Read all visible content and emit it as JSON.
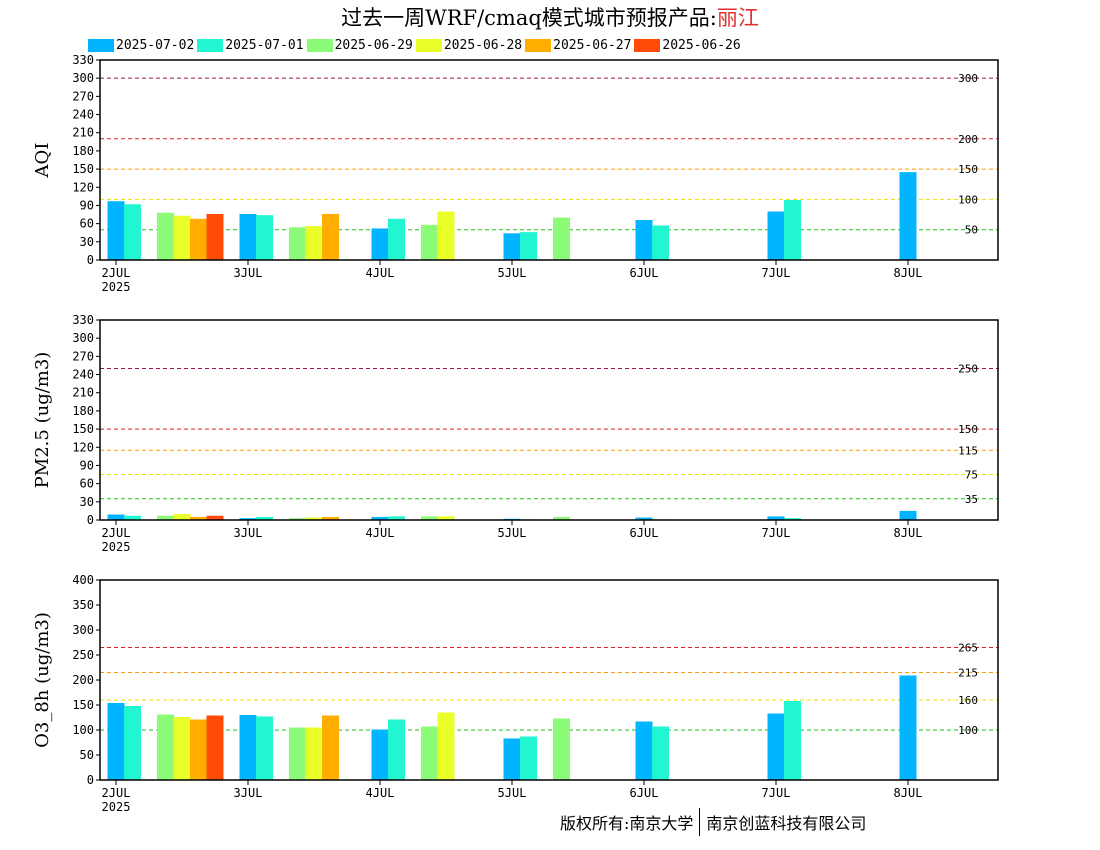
{
  "title": {
    "prefix": "过去一周WRF/cmaq模式城市预报产品:",
    "city": "丽江"
  },
  "legend": [
    {
      "label": "2025-07-02",
      "color": "#00b4ff"
    },
    {
      "label": "2025-07-01",
      "color": "#22f5d2"
    },
    {
      "label": "2025-06-29",
      "color": "#8cfb78"
    },
    {
      "label": "2025-06-28",
      "color": "#eaff2a"
    },
    {
      "label": "2025-06-27",
      "color": "#ffad00"
    },
    {
      "label": "2025-06-26",
      "color": "#ff4a08"
    }
  ],
  "footer": {
    "left": "版权所有:南京大学",
    "right": "南京创蓝科技有限公司"
  },
  "chart_data": [
    {
      "type": "bar",
      "ylabel": "AQI",
      "ylim": [
        0,
        330
      ],
      "yticks": [
        0,
        30,
        60,
        90,
        120,
        150,
        180,
        210,
        240,
        270,
        300,
        330
      ],
      "xticks": [
        {
          "label": "2JUL",
          "sub": "2025",
          "pos": 0
        },
        {
          "label": "3JUL",
          "sub": "",
          "pos": 1
        },
        {
          "label": "4JUL",
          "sub": "",
          "pos": 2
        },
        {
          "label": "5JUL",
          "sub": "",
          "pos": 3
        },
        {
          "label": "6JUL",
          "sub": "",
          "pos": 4
        },
        {
          "label": "7JUL",
          "sub": "",
          "pos": 5
        },
        {
          "label": "8JUL",
          "sub": "",
          "pos": 6
        }
      ],
      "thresholds": [
        {
          "value": 50,
          "label": "50",
          "color": "#1fbf1f"
        },
        {
          "value": 100,
          "label": "100",
          "color": "#e8e400"
        },
        {
          "value": 150,
          "label": "150",
          "color": "#ff9a00"
        },
        {
          "value": 200,
          "label": "200",
          "color": "#e02020"
        },
        {
          "value": 300,
          "label": "300",
          "color": "#a0105a"
        }
      ],
      "bars": [
        {
          "series": "2025-07-02",
          "x": 0.0,
          "value": 97
        },
        {
          "series": "2025-07-01",
          "x": 0.125,
          "value": 92
        },
        {
          "series": "2025-06-29",
          "x": 0.375,
          "value": 78
        },
        {
          "series": "2025-06-28",
          "x": 0.5,
          "value": 73
        },
        {
          "series": "2025-06-27",
          "x": 0.625,
          "value": 68
        },
        {
          "series": "2025-06-26",
          "x": 0.75,
          "value": 76
        },
        {
          "series": "2025-07-02",
          "x": 1.0,
          "value": 76
        },
        {
          "series": "2025-07-01",
          "x": 1.125,
          "value": 74
        },
        {
          "series": "2025-06-29",
          "x": 1.375,
          "value": 54
        },
        {
          "series": "2025-06-28",
          "x": 1.5,
          "value": 56
        },
        {
          "series": "2025-06-27",
          "x": 1.625,
          "value": 76
        },
        {
          "series": "2025-07-02",
          "x": 2.0,
          "value": 52
        },
        {
          "series": "2025-07-01",
          "x": 2.125,
          "value": 68
        },
        {
          "series": "2025-06-29",
          "x": 2.375,
          "value": 58
        },
        {
          "series": "2025-06-28",
          "x": 2.5,
          "value": 80
        },
        {
          "series": "2025-07-02",
          "x": 3.0,
          "value": 44
        },
        {
          "series": "2025-07-01",
          "x": 3.125,
          "value": 46
        },
        {
          "series": "2025-06-29",
          "x": 3.375,
          "value": 70
        },
        {
          "series": "2025-07-02",
          "x": 4.0,
          "value": 66
        },
        {
          "series": "2025-07-01",
          "x": 4.125,
          "value": 57
        },
        {
          "series": "2025-07-02",
          "x": 5.0,
          "value": 80
        },
        {
          "series": "2025-07-01",
          "x": 5.125,
          "value": 99
        },
        {
          "series": "2025-07-02",
          "x": 6.0,
          "value": 145
        }
      ]
    },
    {
      "type": "bar",
      "ylabel": "PM2.5 (ug/m3)",
      "ylim": [
        0,
        330
      ],
      "yticks": [
        0,
        30,
        60,
        90,
        120,
        150,
        180,
        210,
        240,
        270,
        300,
        330
      ],
      "xticks": [
        {
          "label": "2JUL",
          "sub": "2025",
          "pos": 0
        },
        {
          "label": "3JUL",
          "sub": "",
          "pos": 1
        },
        {
          "label": "4JUL",
          "sub": "",
          "pos": 2
        },
        {
          "label": "5JUL",
          "sub": "",
          "pos": 3
        },
        {
          "label": "6JUL",
          "sub": "",
          "pos": 4
        },
        {
          "label": "7JUL",
          "sub": "",
          "pos": 5
        },
        {
          "label": "8JUL",
          "sub": "",
          "pos": 6
        }
      ],
      "thresholds": [
        {
          "value": 35,
          "label": "35",
          "color": "#1fbf1f"
        },
        {
          "value": 75,
          "label": "75",
          "color": "#e8e400"
        },
        {
          "value": 115,
          "label": "115",
          "color": "#ff9a00"
        },
        {
          "value": 150,
          "label": "150",
          "color": "#e02020"
        },
        {
          "value": 250,
          "label": "250",
          "color": "#a0105a"
        }
      ],
      "bars": [
        {
          "series": "2025-07-02",
          "x": 0.0,
          "value": 9
        },
        {
          "series": "2025-07-01",
          "x": 0.125,
          "value": 7
        },
        {
          "series": "2025-06-29",
          "x": 0.375,
          "value": 7
        },
        {
          "series": "2025-06-28",
          "x": 0.5,
          "value": 10
        },
        {
          "series": "2025-06-27",
          "x": 0.625,
          "value": 5
        },
        {
          "series": "2025-06-26",
          "x": 0.75,
          "value": 7
        },
        {
          "series": "2025-07-02",
          "x": 1.0,
          "value": 3
        },
        {
          "series": "2025-07-01",
          "x": 1.125,
          "value": 5
        },
        {
          "series": "2025-06-29",
          "x": 1.375,
          "value": 3
        },
        {
          "series": "2025-06-28",
          "x": 1.5,
          "value": 4
        },
        {
          "series": "2025-06-27",
          "x": 1.625,
          "value": 5
        },
        {
          "series": "2025-07-02",
          "x": 2.0,
          "value": 5
        },
        {
          "series": "2025-07-01",
          "x": 2.125,
          "value": 6
        },
        {
          "series": "2025-06-29",
          "x": 2.375,
          "value": 6
        },
        {
          "series": "2025-06-28",
          "x": 2.5,
          "value": 6
        },
        {
          "series": "2025-07-02",
          "x": 3.0,
          "value": 2
        },
        {
          "series": "2025-07-01",
          "x": 3.125,
          "value": 1
        },
        {
          "series": "2025-06-29",
          "x": 3.375,
          "value": 5
        },
        {
          "series": "2025-07-02",
          "x": 4.0,
          "value": 4
        },
        {
          "series": "2025-07-01",
          "x": 4.125,
          "value": 1
        },
        {
          "series": "2025-07-02",
          "x": 5.0,
          "value": 6
        },
        {
          "series": "2025-07-01",
          "x": 5.125,
          "value": 3
        },
        {
          "series": "2025-07-02",
          "x": 6.0,
          "value": 15
        }
      ]
    },
    {
      "type": "bar",
      "ylabel": "O3_8h (ug/m3)",
      "ylim": [
        0,
        400
      ],
      "yticks": [
        0,
        50,
        100,
        150,
        200,
        250,
        300,
        350,
        400
      ],
      "xticks": [
        {
          "label": "2JUL",
          "sub": "2025",
          "pos": 0
        },
        {
          "label": "3JUL",
          "sub": "",
          "pos": 1
        },
        {
          "label": "4JUL",
          "sub": "",
          "pos": 2
        },
        {
          "label": "5JUL",
          "sub": "",
          "pos": 3
        },
        {
          "label": "6JUL",
          "sub": "",
          "pos": 4
        },
        {
          "label": "7JUL",
          "sub": "",
          "pos": 5
        },
        {
          "label": "8JUL",
          "sub": "",
          "pos": 6
        }
      ],
      "thresholds": [
        {
          "value": 100,
          "label": "100",
          "color": "#1fbf1f"
        },
        {
          "value": 160,
          "label": "160",
          "color": "#e8e400"
        },
        {
          "value": 215,
          "label": "215",
          "color": "#ff9a00"
        },
        {
          "value": 265,
          "label": "265",
          "color": "#e02020"
        }
      ],
      "bars": [
        {
          "series": "2025-07-02",
          "x": 0.0,
          "value": 154
        },
        {
          "series": "2025-07-01",
          "x": 0.125,
          "value": 148
        },
        {
          "series": "2025-06-29",
          "x": 0.375,
          "value": 131
        },
        {
          "series": "2025-06-28",
          "x": 0.5,
          "value": 126
        },
        {
          "series": "2025-06-27",
          "x": 0.625,
          "value": 121
        },
        {
          "series": "2025-06-26",
          "x": 0.75,
          "value": 129
        },
        {
          "series": "2025-07-02",
          "x": 1.0,
          "value": 130
        },
        {
          "series": "2025-07-01",
          "x": 1.125,
          "value": 127
        },
        {
          "series": "2025-06-29",
          "x": 1.375,
          "value": 105
        },
        {
          "series": "2025-06-28",
          "x": 1.5,
          "value": 105
        },
        {
          "series": "2025-06-27",
          "x": 1.625,
          "value": 129
        },
        {
          "series": "2025-07-02",
          "x": 2.0,
          "value": 101
        },
        {
          "series": "2025-07-01",
          "x": 2.125,
          "value": 121
        },
        {
          "series": "2025-06-29",
          "x": 2.375,
          "value": 107
        },
        {
          "series": "2025-06-28",
          "x": 2.5,
          "value": 135
        },
        {
          "series": "2025-07-02",
          "x": 3.0,
          "value": 83
        },
        {
          "series": "2025-07-01",
          "x": 3.125,
          "value": 87
        },
        {
          "series": "2025-06-29",
          "x": 3.375,
          "value": 123
        },
        {
          "series": "2025-07-02",
          "x": 4.0,
          "value": 117
        },
        {
          "series": "2025-07-01",
          "x": 4.125,
          "value": 107
        },
        {
          "series": "2025-07-02",
          "x": 5.0,
          "value": 133
        },
        {
          "series": "2025-07-01",
          "x": 5.125,
          "value": 158
        },
        {
          "series": "2025-07-02",
          "x": 6.0,
          "value": 209
        }
      ]
    }
  ]
}
